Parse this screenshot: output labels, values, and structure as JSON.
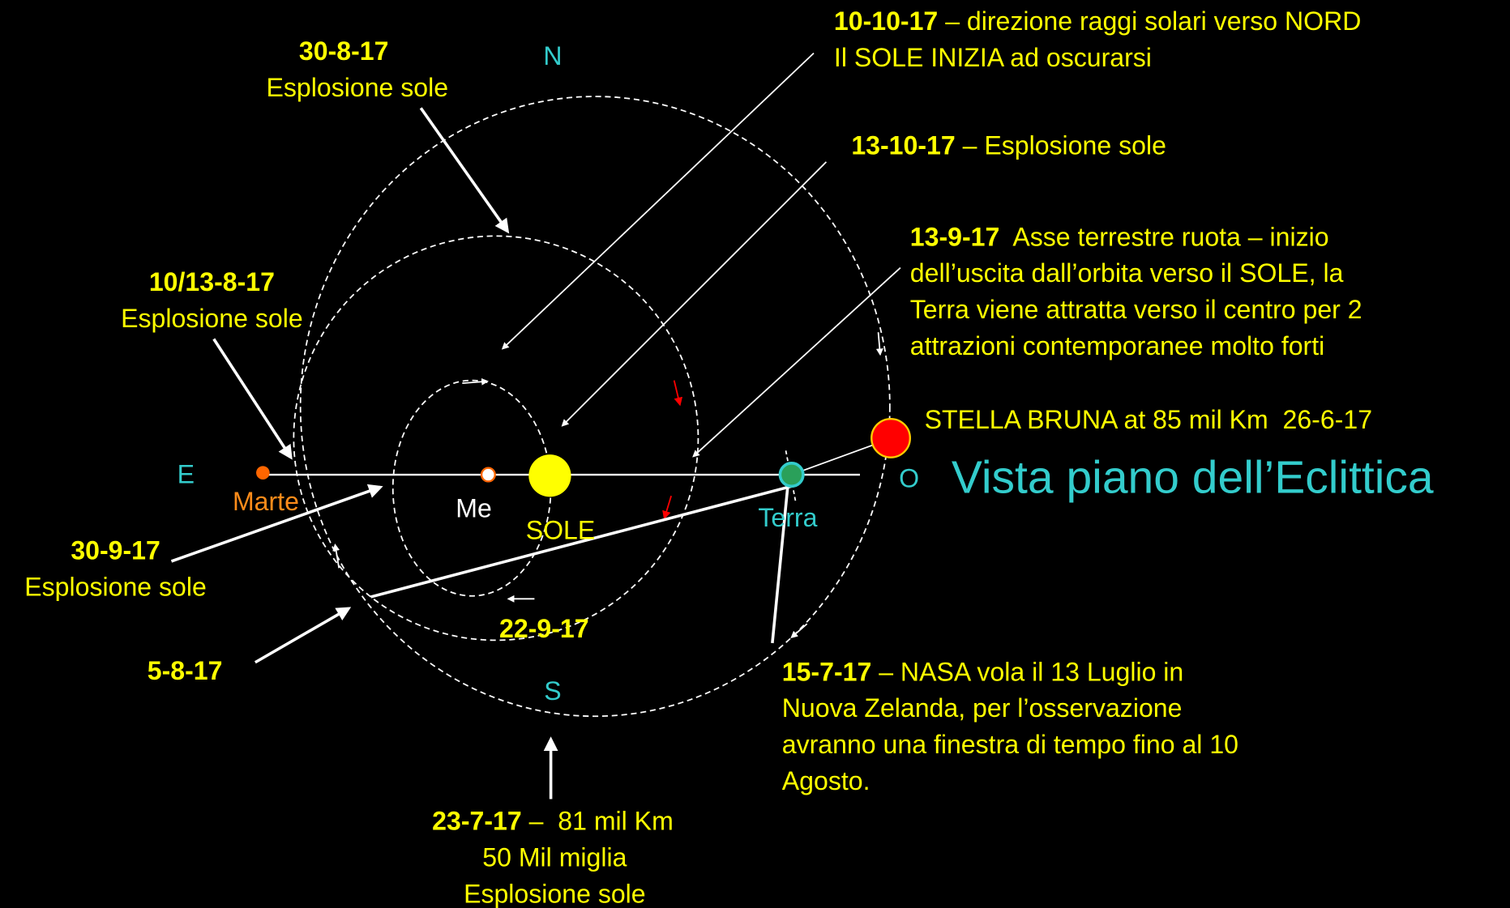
{
  "title": "Vista piano dell’Eclittica",
  "compass": [
    "N",
    "S",
    "E",
    "O"
  ],
  "bodies": [
    "Marte",
    "Me",
    "SOLE",
    "Terra"
  ],
  "star": "STELLA BRUNA at 85 mil Km  26-6-17",
  "annotations": [
    {
      "date": "30-8-17",
      "lines": [
        "Esplosione sole"
      ]
    },
    {
      "date": "10/13-8-17",
      "lines": [
        "Esplosione sole"
      ]
    },
    {
      "date": "30-9-17",
      "lines": [
        "Esplosione sole"
      ]
    },
    {
      "date": "5-8-17"
    },
    {
      "date": "22-9-17"
    },
    {
      "date": "23-7-17",
      "text": " –  81 mil Km",
      "lines": [
        "50 Mil miglia",
        "Esplosione sole"
      ]
    },
    {
      "date": "10-10-17",
      "text": " – direzione raggi solari verso NORD",
      "lines": [
        "Il SOLE INIZIA ad oscurarsi"
      ]
    },
    {
      "date": "13-10-17",
      "text": " – Esplosione sole"
    },
    {
      "date": "13-9-17",
      "text": "  Asse terrestre ruota – inizio",
      "lines": [
        "dell’uscita dall’orbita verso il SOLE, la",
        "Terra viene attratta verso il centro per 2",
        "attrazioni contemporanee molto forti"
      ]
    },
    {
      "date": "15-7-17",
      "text": " – NASA vola il 13 Luglio in",
      "lines": [
        "Nuova Zelanda, per l’osservazione",
        "avranno una finestra di tempo fino al 10",
        "Agosto."
      ]
    }
  ]
}
